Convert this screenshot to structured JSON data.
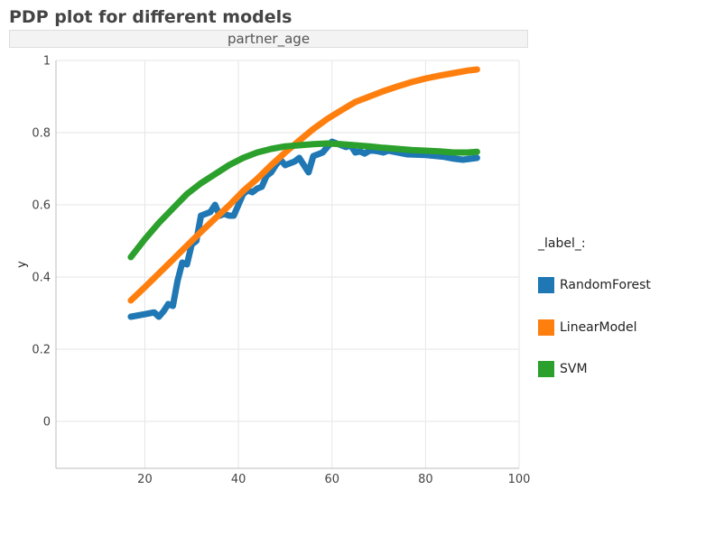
{
  "chart_data": {
    "type": "line",
    "title": "PDP plot for different models",
    "facet_label": "partner_age",
    "xlabel": "",
    "ylabel": "y",
    "xlim": [
      1,
      100
    ],
    "ylim": [
      -0.13,
      1.0
    ],
    "x_ticks": [
      20,
      40,
      60,
      80,
      100
    ],
    "y_ticks": [
      0,
      0.2,
      0.4,
      0.6,
      0.8,
      1
    ],
    "y_tick_labels": [
      "0",
      "0.2",
      "0.4",
      "0.6",
      "0.8",
      "1"
    ],
    "grid": true,
    "legend": {
      "title": "_label_:",
      "placement": "right"
    },
    "series": [
      {
        "name": "RandomForest",
        "color": "#1f77b4",
        "x": [
          17,
          20,
          22,
          23,
          24,
          25,
          26,
          27,
          28,
          29,
          30,
          31,
          32,
          33,
          34,
          35,
          36,
          37,
          38,
          39,
          40,
          41,
          42,
          43,
          44,
          45,
          46,
          47,
          48,
          49,
          50,
          51,
          52,
          53,
          54,
          55,
          56,
          57,
          58,
          59,
          60,
          61,
          62,
          63,
          64,
          65,
          66,
          67,
          68,
          69,
          70,
          71,
          72,
          74,
          76,
          80,
          84,
          86,
          88,
          91
        ],
        "y": [
          0.29,
          0.297,
          0.302,
          0.29,
          0.305,
          0.325,
          0.32,
          0.39,
          0.44,
          0.435,
          0.49,
          0.5,
          0.57,
          0.575,
          0.58,
          0.6,
          0.57,
          0.575,
          0.57,
          0.57,
          0.6,
          0.63,
          0.64,
          0.635,
          0.645,
          0.65,
          0.68,
          0.69,
          0.71,
          0.725,
          0.71,
          0.715,
          0.72,
          0.73,
          0.71,
          0.69,
          0.735,
          0.74,
          0.745,
          0.76,
          0.775,
          0.77,
          0.765,
          0.76,
          0.765,
          0.745,
          0.748,
          0.742,
          0.75,
          0.75,
          0.748,
          0.745,
          0.75,
          0.745,
          0.74,
          0.738,
          0.733,
          0.728,
          0.725,
          0.73
        ]
      },
      {
        "name": "LinearModel",
        "color": "#ff7f0e",
        "x": [
          17,
          20,
          23,
          26,
          29,
          32,
          35,
          38,
          41,
          44,
          47,
          50,
          53,
          56,
          59,
          62,
          65,
          68,
          71,
          74,
          77,
          80,
          83,
          86,
          89,
          91
        ],
        "y": [
          0.335,
          0.372,
          0.41,
          0.448,
          0.487,
          0.525,
          0.562,
          0.598,
          0.638,
          0.672,
          0.71,
          0.745,
          0.778,
          0.81,
          0.838,
          0.862,
          0.885,
          0.9,
          0.915,
          0.928,
          0.94,
          0.95,
          0.958,
          0.965,
          0.972,
          0.975
        ]
      },
      {
        "name": "SVM",
        "color": "#2ca02c",
        "x": [
          17,
          20,
          23,
          26,
          29,
          32,
          35,
          38,
          41,
          44,
          47,
          50,
          53,
          56,
          59,
          62,
          65,
          68,
          71,
          74,
          77,
          80,
          83,
          86,
          89,
          91
        ],
        "y": [
          0.455,
          0.505,
          0.55,
          0.59,
          0.63,
          0.66,
          0.685,
          0.71,
          0.73,
          0.745,
          0.755,
          0.762,
          0.765,
          0.768,
          0.77,
          0.768,
          0.765,
          0.762,
          0.758,
          0.755,
          0.752,
          0.75,
          0.748,
          0.745,
          0.745,
          0.747
        ]
      }
    ]
  }
}
